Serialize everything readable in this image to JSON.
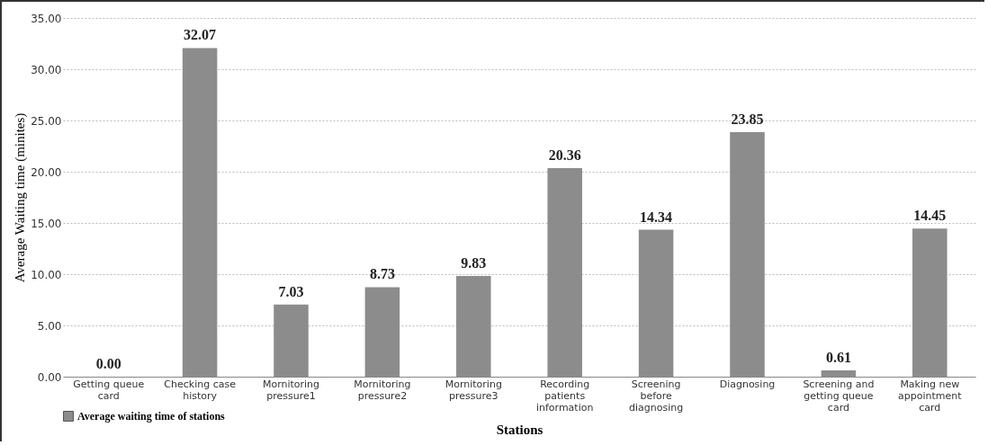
{
  "chart_data": {
    "type": "bar",
    "xlabel": "Stations",
    "ylabel": "Average Waiting time (minites)",
    "categories": [
      "Getting queue card",
      "Checking case history",
      "Mornitoring pressure1",
      "Mornitoring pressure2",
      "Mornitoring pressure3",
      "Recording patients information",
      "Screening before diagnosing",
      "Diagnosing",
      "Screening and getting queue card",
      "Making new appointment card"
    ],
    "series": [
      {
        "name": "Average waiting time of stations",
        "color": "#8c8c8c",
        "values": [
          0.0,
          32.07,
          7.03,
          8.73,
          9.83,
          20.36,
          14.34,
          23.85,
          0.61,
          14.45
        ]
      }
    ],
    "ylim": [
      0,
      35
    ],
    "yticks": [
      {
        "value": 0,
        "label": "0.00"
      },
      {
        "value": 5,
        "label": "5.00"
      },
      {
        "value": 10,
        "label": "10.00"
      },
      {
        "value": 15,
        "label": "15.00"
      },
      {
        "value": 20,
        "label": "20.00"
      },
      {
        "value": 25,
        "label": "25.00"
      },
      {
        "value": 30,
        "label": "30.00"
      },
      {
        "value": 35,
        "label": "35.00"
      }
    ],
    "value_labels": [
      [
        "0.00",
        "32.07",
        "7.03",
        "8.73",
        "9.83",
        "20.36",
        "14.34",
        "23.85",
        "0.61",
        "14.45"
      ]
    ],
    "grid": "y",
    "legend": "bottom"
  }
}
